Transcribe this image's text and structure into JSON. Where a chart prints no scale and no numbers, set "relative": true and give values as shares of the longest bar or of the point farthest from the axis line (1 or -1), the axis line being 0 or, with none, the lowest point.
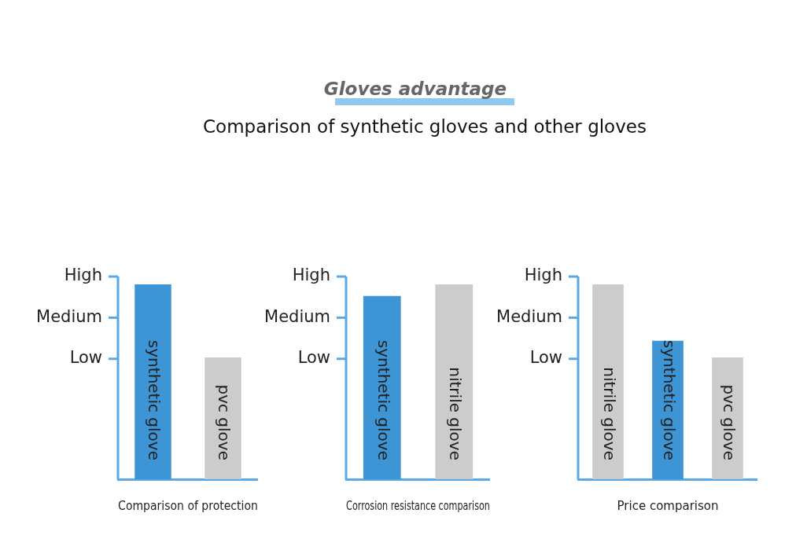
{
  "chart_data": [
    {
      "type": "other",
      "title": "Gloves advantage",
      "subtitle": "Comparison of synthetic gloves and other gloves"
    },
    {
      "type": "bar",
      "xlabel": "Comparison of protection",
      "categories": [
        "synthetic glove",
        "pvc glove"
      ],
      "values": [
        1,
        0.625
      ],
      "colors": [
        "#3d95d5",
        "#cccccc"
      ],
      "relative": true,
      "annotations": [
        "High",
        "Medium",
        "Low"
      ],
      "tick_labels": "x",
      "grid": false,
      "legend": false
    },
    {
      "type": "bar",
      "xlabel": "Corrosion resistance comparison",
      "categories": [
        "synthetic glove",
        "nitrile glove"
      ],
      "values": [
        0.94,
        1
      ],
      "colors": [
        "#3d95d5",
        "#cccccc"
      ],
      "relative": true,
      "annotations": [
        "High",
        "Medium",
        "Low"
      ],
      "tick_labels": "x",
      "grid": false,
      "legend": false
    },
    {
      "type": "bar",
      "xlabel": "Price comparison",
      "categories": [
        "nitrile glove",
        "synthetic glove",
        "pvc glove"
      ],
      "values": [
        1,
        0.71,
        0.625
      ],
      "colors": [
        "#cccccc",
        "#3d95d5",
        "#cccccc"
      ],
      "relative": true,
      "annotations": [
        "High",
        "Medium",
        "Low"
      ],
      "tick_labels": "x",
      "grid": false,
      "legend": false
    }
  ]
}
